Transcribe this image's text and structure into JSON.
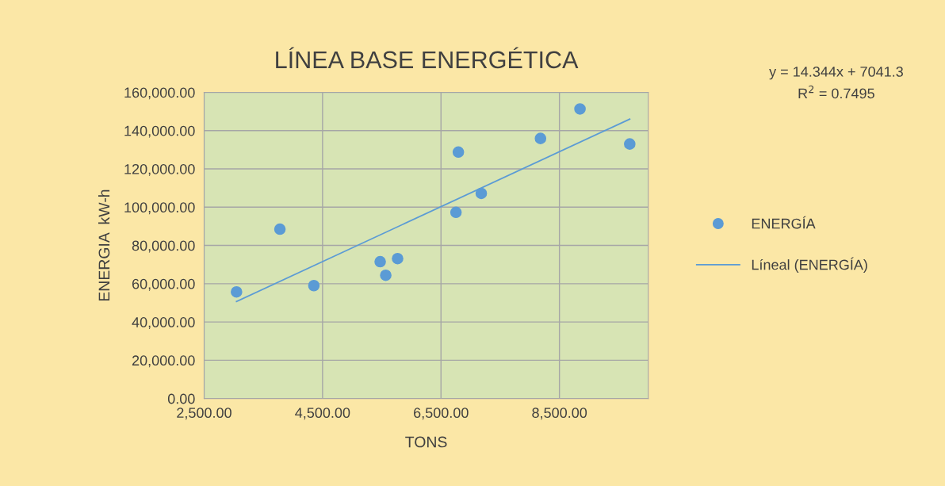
{
  "chart_data": {
    "type": "scatter",
    "title": "LÍNEA BASE ENERGÉTICA",
    "xlabel": "TONS",
    "ylabel": "ENERGIA  kW-h",
    "series": [
      {
        "name": "ENERGÍA",
        "color": "#5b9bd5",
        "marker": "circle",
        "x": [
          3047,
          3780,
          4353,
          5473,
          5567,
          5767,
          6753,
          6793,
          7180,
          8180,
          8847,
          9687
        ],
        "values": [
          55700,
          88500,
          59000,
          71500,
          64400,
          73100,
          97300,
          128800,
          107200,
          135900,
          151300,
          133000
        ]
      },
      {
        "name": "Líneal (ENERGÍA)",
        "type": "line",
        "color": "#5b9bd5",
        "line_style": "solid",
        "x": [
          3047,
          9687
        ],
        "values": [
          50700,
          146000
        ]
      }
    ],
    "xlim": [
      2500,
      10000
    ],
    "xticks": [
      {
        "value": 2500,
        "label": "2,500.00"
      },
      {
        "value": 4500,
        "label": "4,500.00"
      },
      {
        "value": 6500,
        "label": "6,500.00"
      },
      {
        "value": 8500,
        "label": "8,500.00"
      }
    ],
    "ylim": [
      0,
      160000
    ],
    "yticks": [
      {
        "value": 0,
        "label": "0.00"
      },
      {
        "value": 20000,
        "label": "20,000.00"
      },
      {
        "value": 40000,
        "label": "40,000.00"
      },
      {
        "value": 60000,
        "label": "60,000.00"
      },
      {
        "value": 80000,
        "label": "80,000.00"
      },
      {
        "value": 100000,
        "label": "100,000.00"
      },
      {
        "value": 120000,
        "label": "120,000.00"
      },
      {
        "value": 140000,
        "label": "140,000.00"
      },
      {
        "value": 160000,
        "label": "160,000.00"
      }
    ],
    "grid": true,
    "legend": "right",
    "annotations": [
      "y = 14.344x + 7041.3",
      "R$^{2}$ = 0.7495"
    ]
  }
}
